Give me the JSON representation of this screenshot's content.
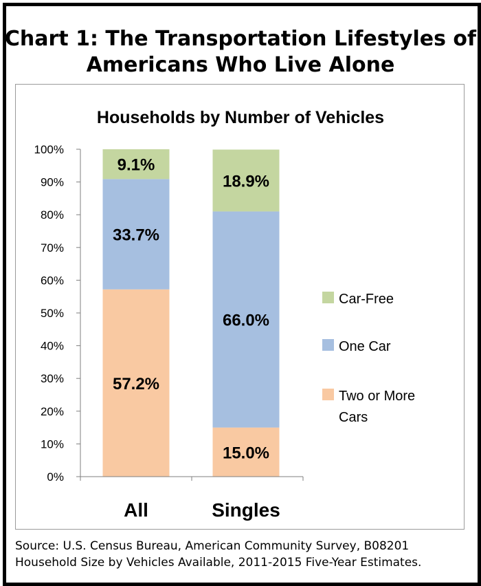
{
  "title": [
    "Chart 1: The Transportation Lifestyles of",
    "Americans Who Live Alone"
  ],
  "source_lines": [
    "Source: U.S. Census Bureau, American Community Survey, B08201",
    "Household Size by Vehicles Available, 2011-2015 Five-Year Estimates."
  ],
  "colors": {
    "car_free": "#c4d6a0",
    "one_car": "#a6bfe0",
    "two_plus": "#f9c9a2"
  },
  "chart_data": {
    "type": "bar",
    "stacked": true,
    "title": "Households by Number of Vehicles",
    "categories": [
      "All",
      "Singles"
    ],
    "series": [
      {
        "name": "Two or More Cars",
        "legend_lines": [
          "Two or More",
          "Cars"
        ],
        "color": "#f9c9a2",
        "values": [
          57.2,
          15.0
        ],
        "labels": [
          "57.2%",
          "15.0%"
        ]
      },
      {
        "name": "One Car",
        "legend_lines": [
          "One Car"
        ],
        "color": "#a6bfe0",
        "values": [
          33.7,
          66.0
        ],
        "labels": [
          "33.7%",
          "66.0%"
        ]
      },
      {
        "name": "Car-Free",
        "legend_lines": [
          "Car-Free"
        ],
        "color": "#c4d6a0",
        "values": [
          9.1,
          18.9
        ],
        "labels": [
          "9.1%",
          "18.9%"
        ]
      }
    ],
    "legend_order": [
      "Car-Free",
      "One Car",
      "Two or More Cars"
    ],
    "legend_position": "right",
    "yticks": [
      "0%",
      "10%",
      "20%",
      "30%",
      "40%",
      "50%",
      "60%",
      "70%",
      "80%",
      "90%",
      "100%"
    ],
    "ylim": [
      0,
      100
    ],
    "grid": false,
    "xlabel": "",
    "ylabel": ""
  }
}
